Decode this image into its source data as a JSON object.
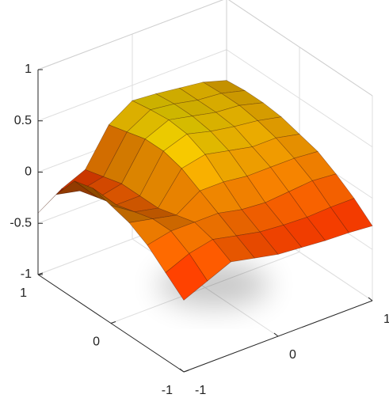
{
  "chart_data": {
    "type": "surface",
    "x": [
      -1,
      -0.75,
      -0.5,
      -0.25,
      0,
      0.25,
      0.5,
      0.75,
      1
    ],
    "y": [
      -1,
      -0.75,
      -0.5,
      -0.25,
      0,
      0.25,
      0.5,
      0.75,
      1
    ],
    "z": [
      [
        -0.3,
        -0.2,
        -0.1,
        -0.15,
        -0.2,
        -0.22,
        -0.24,
        -0.25,
        -0.27
      ],
      [
        -0.15,
        -0.05,
        0.0,
        -0.05,
        -0.1,
        -0.12,
        -0.13,
        -0.12,
        -0.12
      ],
      [
        0.0,
        0.05,
        0.05,
        0.05,
        0.0,
        -0.02,
        0.0,
        0.02,
        0.0
      ],
      [
        0.1,
        0.05,
        0.0,
        0.15,
        0.15,
        0.12,
        0.12,
        0.12,
        0.1
      ],
      [
        0.15,
        0.0,
        -0.05,
        0.25,
        0.3,
        0.25,
        0.2,
        0.2,
        0.15
      ],
      [
        0.2,
        -0.05,
        -0.05,
        0.3,
        0.38,
        0.32,
        0.28,
        0.25,
        0.2
      ],
      [
        0.15,
        -0.1,
        -0.05,
        0.3,
        0.4,
        0.35,
        0.3,
        0.28,
        0.22
      ],
      [
        -0.1,
        -0.15,
        -0.1,
        0.25,
        0.38,
        0.35,
        0.3,
        0.28,
        0.22
      ],
      [
        -0.4,
        -0.25,
        -0.15,
        0.2,
        0.35,
        0.33,
        0.3,
        0.27,
        0.2
      ]
    ],
    "colormap": "autumn",
    "xlim": [
      -1,
      1
    ],
    "ylim": [
      -1,
      1
    ],
    "zlim": [
      -1,
      1
    ],
    "xticks": [
      -1,
      0,
      1
    ],
    "yticks": [
      -1,
      0,
      1
    ],
    "zticks": [
      -1,
      -0.5,
      0,
      0.5,
      1
    ],
    "grid": true
  }
}
